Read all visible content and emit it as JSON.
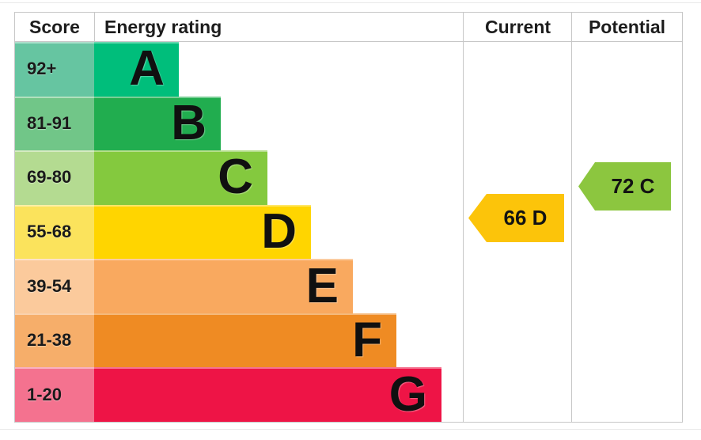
{
  "header": {
    "score": "Score",
    "energy_rating": "Energy rating",
    "current": "Current",
    "potential": "Potential"
  },
  "bands": [
    {
      "letter": "A",
      "score_range": "92+",
      "band_color": "#00be7b",
      "score_color": "#66c5a1"
    },
    {
      "letter": "B",
      "score_range": "81-91",
      "band_color": "#21ad4f",
      "score_color": "#71c688"
    },
    {
      "letter": "C",
      "score_range": "69-80",
      "band_color": "#84c93e",
      "score_color": "#b4db91"
    },
    {
      "letter": "D",
      "score_range": "55-68",
      "band_color": "#ffd500",
      "score_color": "#fbe35c"
    },
    {
      "letter": "E",
      "score_range": "39-54",
      "band_color": "#f9a95f",
      "score_color": "#fbca9c"
    },
    {
      "letter": "F",
      "score_range": "21-38",
      "band_color": "#ef8b23",
      "score_color": "#f6ae6a"
    },
    {
      "letter": "G",
      "score_range": "1-20",
      "band_color": "#ee1446",
      "score_color": "#f4728f"
    }
  ],
  "current": {
    "label": "66 D",
    "color": "#fcc40a"
  },
  "potential": {
    "label": "72 C",
    "color": "#8cc63f"
  },
  "chart_data": {
    "type": "bar",
    "title": "EPC energy rating chart",
    "columns": [
      "Score",
      "Energy rating",
      "Current",
      "Potential"
    ],
    "categories": [
      "A",
      "B",
      "C",
      "D",
      "E",
      "F",
      "G"
    ],
    "score_ranges": [
      "92+",
      "81-91",
      "69-80",
      "55-68",
      "39-54",
      "21-38",
      "1-20"
    ],
    "band_colors": [
      "#00be7b",
      "#21ad4f",
      "#84c93e",
      "#ffd500",
      "#f9a95f",
      "#ef8b23",
      "#ee1446"
    ],
    "bar_relative_widths": [
      107,
      160,
      219,
      274,
      327,
      382,
      439
    ],
    "markers": [
      {
        "name": "Current",
        "value": 66,
        "rating": "D",
        "color": "#fcc40a"
      },
      {
        "name": "Potential",
        "value": 72,
        "rating": "C",
        "color": "#8cc63f"
      }
    ],
    "legend_position": "none",
    "grid": false
  }
}
